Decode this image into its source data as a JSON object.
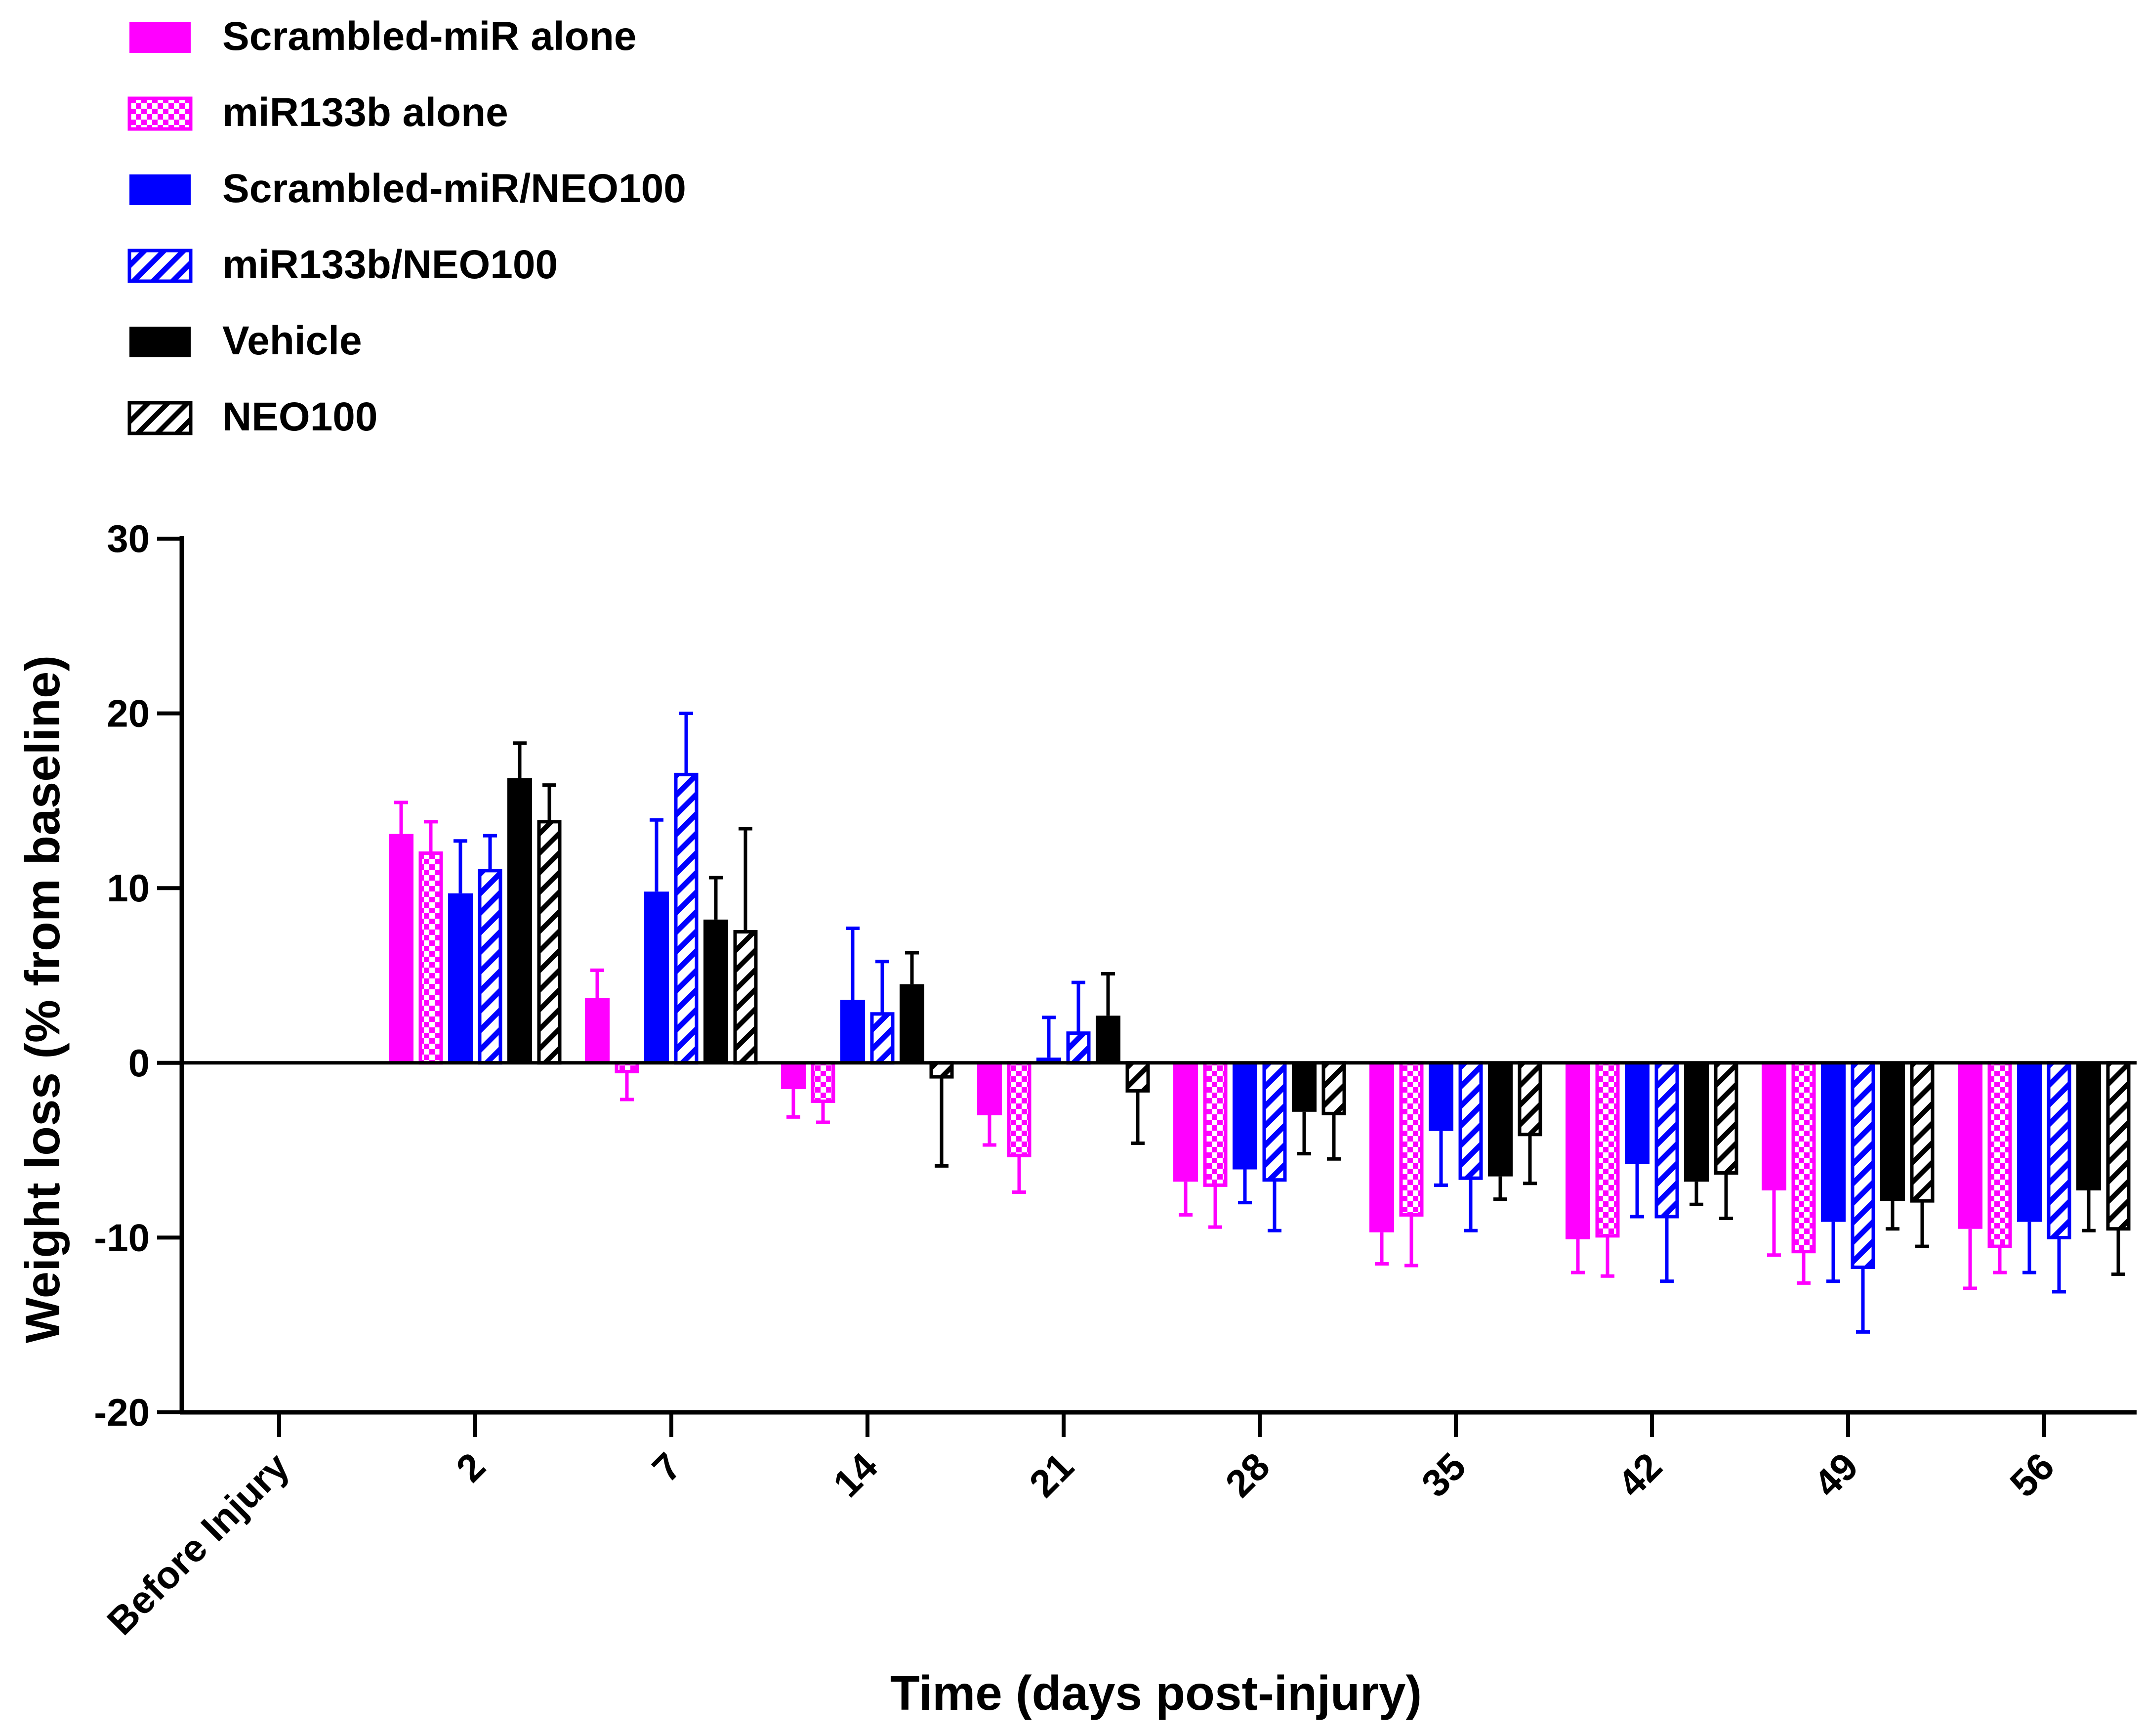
{
  "chart_data": {
    "type": "bar",
    "title": "",
    "xlabel": "Time (days post-injury)",
    "ylabel": "Weight loss (% from baseline)",
    "ylim": [
      -20,
      30
    ],
    "yticks": [
      30,
      20,
      10,
      0,
      -10,
      -20
    ],
    "yticks_text": [
      "30",
      "20",
      "10",
      "0",
      "-10",
      "-20"
    ],
    "categories": [
      "Before Injury",
      "2",
      "7",
      "14",
      "21",
      "28",
      "35",
      "42",
      "49",
      "56"
    ],
    "legend_position": "top-left",
    "series": [
      {
        "name": "Scrambled-miR alone",
        "color": "#ff00ff",
        "pattern": "solid",
        "values": [
          0,
          13.1,
          3.7,
          -1.5,
          -3.0,
          -6.8,
          -9.7,
          -10.1,
          -7.3,
          -9.5
        ],
        "errors": [
          0,
          1.8,
          1.6,
          1.6,
          1.7,
          1.9,
          1.8,
          1.9,
          3.7,
          3.4
        ]
      },
      {
        "name": "miR133b alone",
        "color": "#ff00ff",
        "pattern": "checker",
        "values": [
          0,
          12.0,
          -0.5,
          -2.2,
          -5.3,
          -7.0,
          -8.7,
          -9.9,
          -10.8,
          -10.5
        ],
        "errors": [
          0,
          1.8,
          1.6,
          1.2,
          2.1,
          2.4,
          2.9,
          2.3,
          1.8,
          1.5
        ]
      },
      {
        "name": "Scrambled-miR/NEO100",
        "color": "#0000ff",
        "pattern": "solid",
        "values": [
          0,
          9.7,
          9.8,
          3.6,
          0.3,
          -6.1,
          -3.9,
          -5.8,
          -9.1,
          -9.1
        ],
        "errors": [
          0,
          3.0,
          4.1,
          4.1,
          2.3,
          1.9,
          3.1,
          3.0,
          3.4,
          2.9
        ]
      },
      {
        "name": "miR133b/NEO100",
        "color": "#0000ff",
        "pattern": "hatch",
        "values": [
          0,
          11.0,
          16.5,
          2.8,
          1.7,
          -6.7,
          -6.6,
          -8.8,
          -11.7,
          -10.0
        ],
        "errors": [
          0,
          2.0,
          3.5,
          3.0,
          2.9,
          2.9,
          3.0,
          3.7,
          3.7,
          3.1
        ]
      },
      {
        "name": "Vehicle",
        "color": "#000000",
        "pattern": "solid",
        "values": [
          0,
          16.3,
          8.2,
          4.5,
          2.7,
          -2.8,
          -6.5,
          -6.8,
          -7.9,
          -7.3
        ],
        "errors": [
          0,
          2.0,
          2.4,
          1.8,
          2.4,
          2.4,
          1.3,
          1.3,
          1.6,
          2.3
        ]
      },
      {
        "name": "NEO100",
        "color": "#000000",
        "pattern": "hatch-black",
        "values": [
          0,
          13.8,
          7.5,
          -0.8,
          -1.6,
          -2.9,
          -4.1,
          -6.3,
          -7.9,
          -9.5
        ],
        "errors": [
          0,
          2.1,
          5.9,
          5.1,
          3.0,
          2.6,
          2.8,
          2.6,
          2.6,
          2.6
        ]
      }
    ]
  }
}
